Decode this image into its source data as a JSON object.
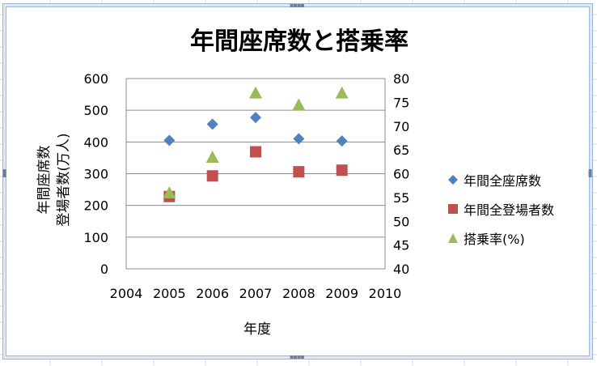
{
  "chart_data": {
    "type": "scatter",
    "title": "年間座席数と搭乗率",
    "xlabel": "年度",
    "ylabel": [
      "年間座席数",
      "登場者数(万人)"
    ],
    "y2label": "",
    "xlim": [
      2004,
      2010
    ],
    "xticks": [
      "2004",
      "2005",
      "2006",
      "2007",
      "2008",
      "2009",
      "2010"
    ],
    "ylim": [
      0,
      600
    ],
    "yticks": [
      "0",
      "100",
      "200",
      "300",
      "400",
      "500",
      "600"
    ],
    "y2lim": [
      40,
      80
    ],
    "y2ticks": [
      "40",
      "45",
      "50",
      "55",
      "60",
      "65",
      "70",
      "75",
      "80"
    ],
    "grid": true,
    "legend_position": "right",
    "series": [
      {
        "name": "年間全座席数",
        "axis": "left",
        "marker": "diamond",
        "color": "#4f81bd",
        "x": [
          2005,
          2006,
          2007,
          2008,
          2009
        ],
        "y": [
          405,
          456,
          477,
          410,
          403
        ]
      },
      {
        "name": "年間全登場者数",
        "axis": "left",
        "marker": "square",
        "color": "#c0504d",
        "x": [
          2005,
          2006,
          2007,
          2008,
          2009
        ],
        "y": [
          228,
          293,
          369,
          306,
          311
        ]
      },
      {
        "name": "搭乗率(%)",
        "axis": "right",
        "marker": "triangle",
        "color": "#9bbb59",
        "x": [
          2005,
          2006,
          2007,
          2008,
          2009
        ],
        "y": [
          56,
          63.5,
          77,
          74.5,
          77
        ]
      }
    ]
  }
}
